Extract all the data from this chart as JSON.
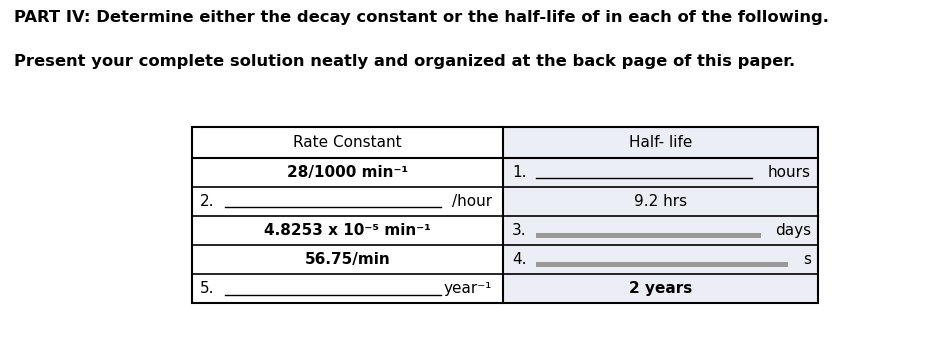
{
  "title_line1": "PART IV: Determine either the decay constant or the half-life of in each of the following.",
  "title_line2": "Present your complete solution neatly and organized at the back page of this paper.",
  "col_header_left": "Rate Constant",
  "col_header_right": "Half- life",
  "rows": [
    {
      "left_num": "",
      "left_blank": false,
      "left_content": "28/1000 min⁻¹",
      "left_bold": true,
      "right_num": "1.",
      "right_blank": true,
      "right_blank_dark": false,
      "right_suffix": "hours",
      "right_content": "",
      "right_bold": false
    },
    {
      "left_num": "2.",
      "left_blank": true,
      "left_content": "/hour",
      "left_bold": false,
      "right_num": "",
      "right_blank": false,
      "right_blank_dark": false,
      "right_suffix": "",
      "right_content": "9.2 hrs",
      "right_bold": false
    },
    {
      "left_num": "",
      "left_blank": false,
      "left_content": "4.8253 x 10⁻⁵ min⁻¹",
      "left_bold": true,
      "right_num": "3.",
      "right_blank": true,
      "right_blank_dark": true,
      "right_suffix": "days",
      "right_content": "",
      "right_bold": false
    },
    {
      "left_num": "",
      "left_blank": false,
      "left_content": "56.75/min",
      "left_bold": true,
      "right_num": "4.",
      "right_blank": true,
      "right_blank_dark": true,
      "right_suffix": "s",
      "right_content": "",
      "right_bold": false
    },
    {
      "left_num": "5.",
      "left_blank": true,
      "left_content": "year⁻¹",
      "left_bold": false,
      "right_num": "",
      "right_blank": false,
      "right_blank_dark": false,
      "right_suffix": "",
      "right_content": "2 years",
      "right_bold": true
    }
  ],
  "fig_bg": "#ffffff",
  "table_left_bg": "#ffffff",
  "table_right_bg": "#eceef5",
  "blank_line_color": "#888888",
  "blank_line_dark_color": "#888888",
  "title_fontsize": 11.8,
  "header_fontsize": 11,
  "cell_fontsize": 11
}
